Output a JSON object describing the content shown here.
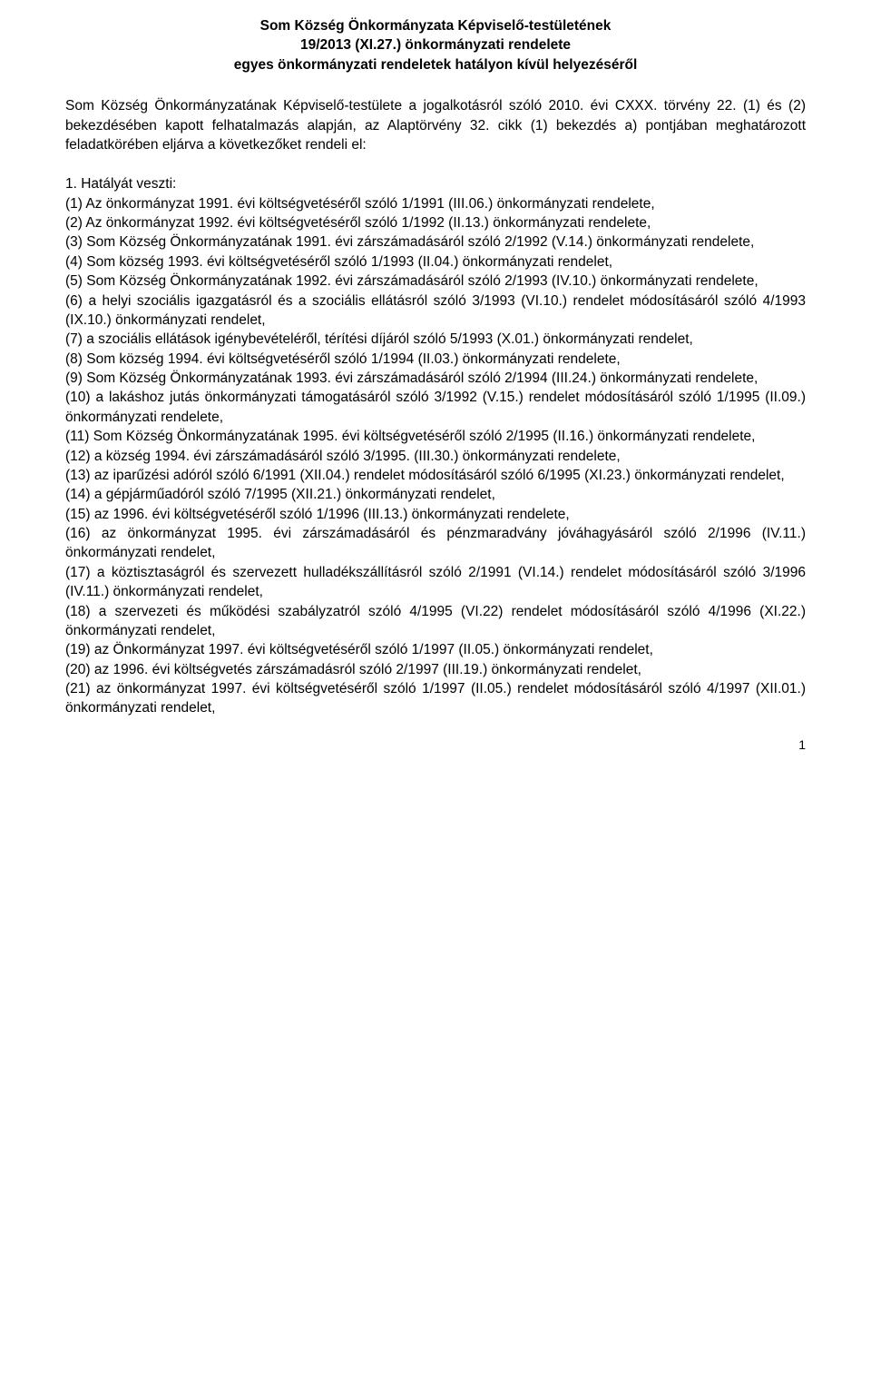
{
  "colors": {
    "background": "#ffffff",
    "text": "#000000"
  },
  "typography": {
    "body_font_size_pt": 12,
    "header_font_weight": "bold",
    "font_family": "Verdana"
  },
  "header": {
    "line1": "Som Község Önkormányzata Képviselő-testületének",
    "line2": "19/2013 (XI.27.) önkormányzati rendelete",
    "line3": "egyes önkormányzati rendeletek hatályon kívül helyezéséről"
  },
  "intro": "Som Község Önkormányzatának Képviselő-testülete a jogalkotásról szóló 2010. évi CXXX. törvény 22. (1) és (2) bekezdésében kapott felhatalmazás alapján, az Alaptörvény 32. cikk (1) bekezdés a) pontjában meghatározott feladatkörében eljárva a következőket rendeli el:",
  "section_head": "1. Hatályát veszti:",
  "items": [
    "(1) Az önkormányzat 1991. évi költségvetéséről szóló 1/1991 (III.06.) önkormányzati rendelete,",
    "(2) Az önkormányzat 1992. évi költségvetéséről szóló 1/1992 (II.13.) önkormányzati rendelete,",
    "(3) Som Község Önkormányzatának 1991. évi zárszámadásáról szóló 2/1992 (V.14.) önkormányzati rendelete,",
    "(4) Som község 1993. évi költségvetéséről szóló 1/1993 (II.04.) önkormányzati rendelet,",
    "(5) Som Község Önkormányzatának 1992. évi zárszámadásáról szóló 2/1993 (IV.10.) önkormányzati rendelete,",
    "(6) a helyi szociális igazgatásról és a szociális ellátásról szóló 3/1993 (VI.10.) rendelet módosításáról szóló 4/1993 (IX.10.) önkormányzati rendelet,",
    "(7) a szociális ellátások igénybevételéről, térítési díjáról szóló 5/1993 (X.01.) önkormányzati rendelet,",
    "(8) Som község 1994. évi költségvetéséről szóló 1/1994 (II.03.) önkormányzati rendelete,",
    "(9) Som Község Önkormányzatának 1993. évi zárszámadásáról szóló 2/1994 (III.24.) önkormányzati rendelete,",
    "(10) a lakáshoz jutás önkormányzati támogatásáról szóló 3/1992 (V.15.) rendelet módosításáról szóló 1/1995 (II.09.) önkormányzati rendelete,",
    "(11) Som Község Önkormányzatának 1995. évi költségvetéséről szóló 2/1995 (II.16.) önkormányzati rendelete,",
    "(12) a község 1994. évi zárszámadásáról szóló 3/1995. (III.30.) önkormányzati rendelete,",
    "(13) az iparűzési adóról szóló 6/1991 (XII.04.) rendelet módosításáról szóló 6/1995 (XI.23.) önkormányzati rendelet,",
    "(14) a gépjárműadóról szóló 7/1995 (XII.21.) önkormányzati rendelet,",
    "(15) az 1996. évi költségvetéséről szóló 1/1996 (III.13.) önkormányzati rendelete,",
    "(16) az önkormányzat 1995. évi zárszámadásáról és pénzmaradvány jóváhagyásáról szóló 2/1996 (IV.11.) önkormányzati rendelet,",
    "(17) a köztisztaságról és szervezett hulladékszállításról szóló 2/1991 (VI.14.) rendelet módosításáról szóló 3/1996 (IV.11.) önkormányzati rendelet,",
    "(18) a szervezeti és működési szabályzatról szóló 4/1995 (VI.22) rendelet módosításáról szóló 4/1996 (XI.22.) önkormányzati rendelet,",
    "(19) az Önkormányzat 1997. évi költségvetéséről szóló 1/1997 (II.05.) önkormányzati rendelet,",
    "(20) az 1996. évi költségvetés zárszámadásról szóló 2/1997 (III.19.) önkormányzati rendelet,",
    "(21) az önkormányzat 1997. évi költségvetéséről szóló 1/1997 (II.05.) rendelet módosításáról szóló 4/1997 (XII.01.) önkormányzati rendelet,"
  ],
  "page_number": "1"
}
